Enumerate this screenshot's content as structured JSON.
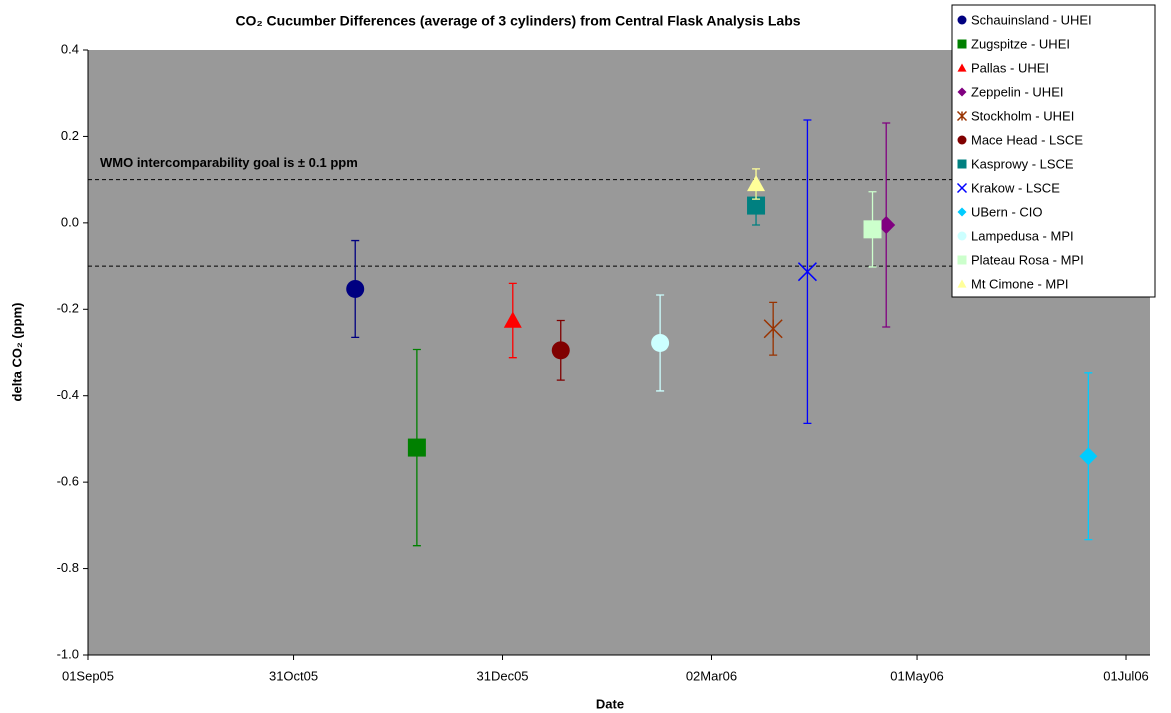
{
  "chart_data": {
    "type": "scatter",
    "title": "CO₂ Cucumber Differences (average of 3 cylinders) from Central Flask Analysis Labs",
    "x_label": "Date",
    "y_label": "delta CO₂ (ppm)",
    "annotation": "WMO intercomparability goal is ± 0.1 ppm",
    "reference_lines": [
      0.1,
      -0.1
    ],
    "plot_background": "#999999",
    "xlim": [
      "2005-09-01",
      "2006-07-08"
    ],
    "xticks": [
      {
        "value": "2005-09-01",
        "label": "01Sep05"
      },
      {
        "value": "2005-10-31",
        "label": "31Oct05"
      },
      {
        "value": "2005-12-31",
        "label": "31Dec05"
      },
      {
        "value": "2006-03-02",
        "label": "02Mar06"
      },
      {
        "value": "2006-05-01",
        "label": "01May06"
      },
      {
        "value": "2006-07-01",
        "label": "01Jul06"
      }
    ],
    "ylim": [
      -1.0,
      0.4
    ],
    "yticks": [
      0.4,
      0.2,
      {
        "value": 0,
        "label": "0.0"
      },
      -0.2,
      -0.4,
      -0.6,
      -0.8,
      {
        "value": -1,
        "label": "-1.0"
      }
    ],
    "series": [
      {
        "name": "Schauinsland - UHEI",
        "color": "#000080",
        "marker": "circle",
        "x": [
          "2005-11-18"
        ],
        "values": [
          -0.153
        ],
        "errors": [
          0.112
        ]
      },
      {
        "name": "Zugspitze - UHEI",
        "color": "#008000",
        "marker": "square",
        "x": [
          "2005-12-06"
        ],
        "values": [
          -0.52
        ],
        "errors": [
          0.227
        ]
      },
      {
        "name": "Pallas - UHEI",
        "color": "#ff0000",
        "marker": "triangle",
        "x": [
          "2006-01-03"
        ],
        "values": [
          -0.226
        ],
        "errors": [
          0.086
        ]
      },
      {
        "name": "Zeppelin - UHEI",
        "color": "#800080",
        "marker": "diamond",
        "x": [
          "2006-04-22"
        ],
        "values": [
          -0.005
        ],
        "errors": [
          0.236
        ]
      },
      {
        "name": "Stockholm - UHEI",
        "color": "#993300",
        "marker": "star",
        "x": [
          "2006-03-20"
        ],
        "values": [
          -0.245
        ],
        "errors": [
          0.061
        ]
      },
      {
        "name": "Mace Head - LSCE",
        "color": "#800000",
        "marker": "circle",
        "x": [
          "2006-01-17"
        ],
        "values": [
          -0.295
        ],
        "errors": [
          0.069
        ]
      },
      {
        "name": "Kasprowy - LSCE",
        "color": "#008080",
        "marker": "square",
        "x": [
          "2006-03-15"
        ],
        "values": [
          0.04
        ],
        "errors": [
          0.045
        ]
      },
      {
        "name": "Krakow - LSCE",
        "color": "#0000ff",
        "marker": "x",
        "x": [
          "2006-03-30"
        ],
        "values": [
          -0.113
        ],
        "errors": [
          0.351
        ]
      },
      {
        "name": "UBern - CIO",
        "color": "#00ccff",
        "marker": "diamond",
        "x": [
          "2006-06-20"
        ],
        "values": [
          -0.54
        ],
        "errors": [
          0.193
        ]
      },
      {
        "name": "Lampedusa - MPI",
        "color": "#ccffff",
        "marker": "circle",
        "x": [
          "2006-02-15"
        ],
        "values": [
          -0.278
        ],
        "errors": [
          0.111
        ]
      },
      {
        "name": "Plateau Rosa - MPI",
        "color": "#ccffcc",
        "marker": "square",
        "x": [
          "2006-04-18"
        ],
        "values": [
          -0.015
        ],
        "errors": [
          0.087
        ]
      },
      {
        "name": "Mt Cimone - MPI",
        "color": "#ffff99",
        "marker": "triangle",
        "x": [
          "2006-03-15"
        ],
        "values": [
          0.09
        ],
        "errors": [
          0.035
        ]
      }
    ]
  }
}
